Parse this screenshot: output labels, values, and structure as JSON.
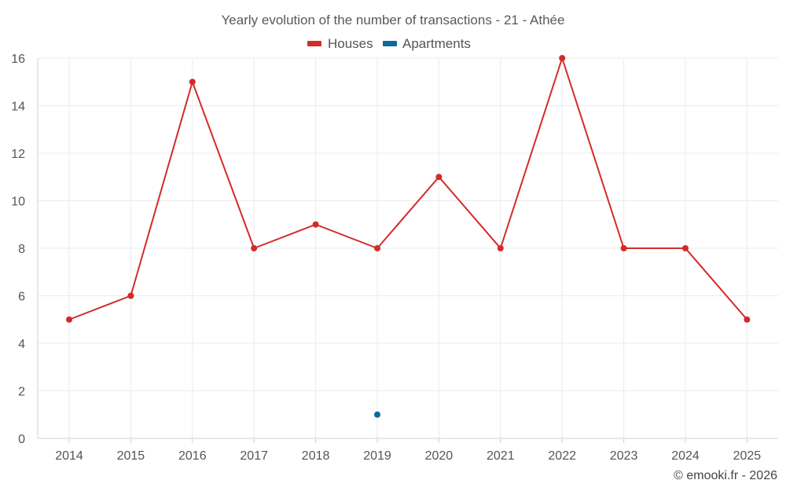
{
  "chart_data": {
    "type": "line",
    "title": "Yearly evolution of the number of transactions - 21 - Athée",
    "categories": [
      "2014",
      "2015",
      "2016",
      "2017",
      "2018",
      "2019",
      "2020",
      "2021",
      "2022",
      "2023",
      "2024",
      "2025"
    ],
    "series": [
      {
        "name": "Houses",
        "color": "#d42a2a",
        "values": [
          5,
          6,
          15,
          8,
          9,
          8,
          11,
          8,
          16,
          8,
          8,
          5
        ]
      },
      {
        "name": "Apartments",
        "color": "#0e6a9a",
        "values": [
          null,
          null,
          null,
          null,
          null,
          1,
          null,
          null,
          null,
          null,
          null,
          null
        ]
      }
    ],
    "y_ticks": [
      "0",
      "2",
      "4",
      "6",
      "8",
      "10",
      "12",
      "14",
      "16"
    ],
    "ylim": [
      0,
      16
    ],
    "xlabel": "",
    "ylabel": "",
    "grid": true,
    "legend_position": "top-center"
  },
  "footer": {
    "copyright": "© emooki.fr - 2026"
  }
}
